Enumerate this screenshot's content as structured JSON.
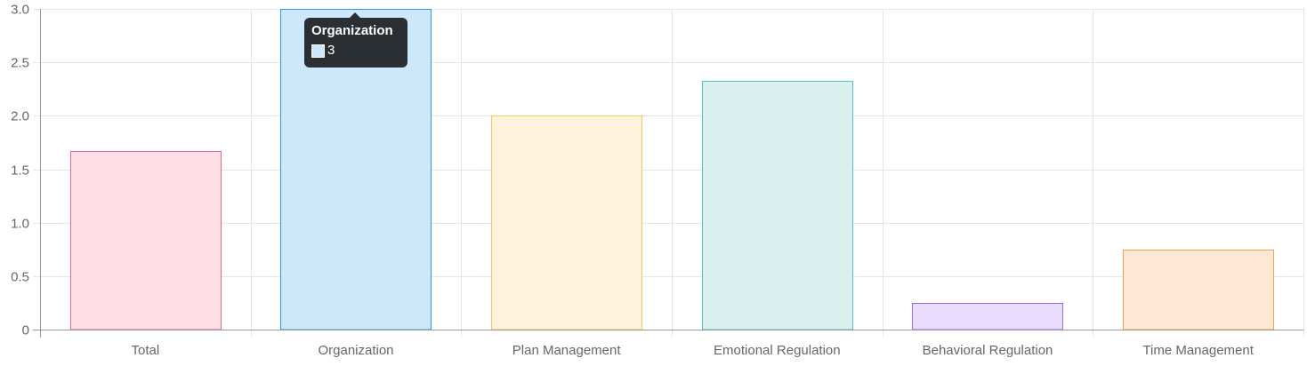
{
  "chart_data": {
    "type": "bar",
    "categories": [
      "Total",
      "Organization",
      "Plan Management",
      "Emotional Regulation",
      "Behavioral Regulation",
      "Time Management"
    ],
    "values": [
      1.67,
      3,
      2,
      2.33,
      0.25,
      0.75
    ],
    "ylim": [
      0,
      3
    ],
    "yticks": [
      "0",
      "0.5",
      "1.0",
      "1.5",
      "2.0",
      "2.5",
      "3.0"
    ],
    "ytick_values": [
      0,
      0.5,
      1.0,
      1.5,
      2.0,
      2.5,
      3.0
    ],
    "grid": true,
    "bar_fill_colors": [
      "#ffdde4",
      "#cce8fa",
      "#fdf3dc",
      "#d8f0ee",
      "#e9dcff",
      "#ffe9d4"
    ],
    "bar_border_colors": [
      "#e06a8c",
      "#2e99dd",
      "#f5c85a",
      "#56c2bf",
      "#9b68f0",
      "#f4a24a"
    ]
  },
  "tooltip": {
    "title": "Organization",
    "value": "3",
    "swatch_color": "#cce8fa"
  }
}
